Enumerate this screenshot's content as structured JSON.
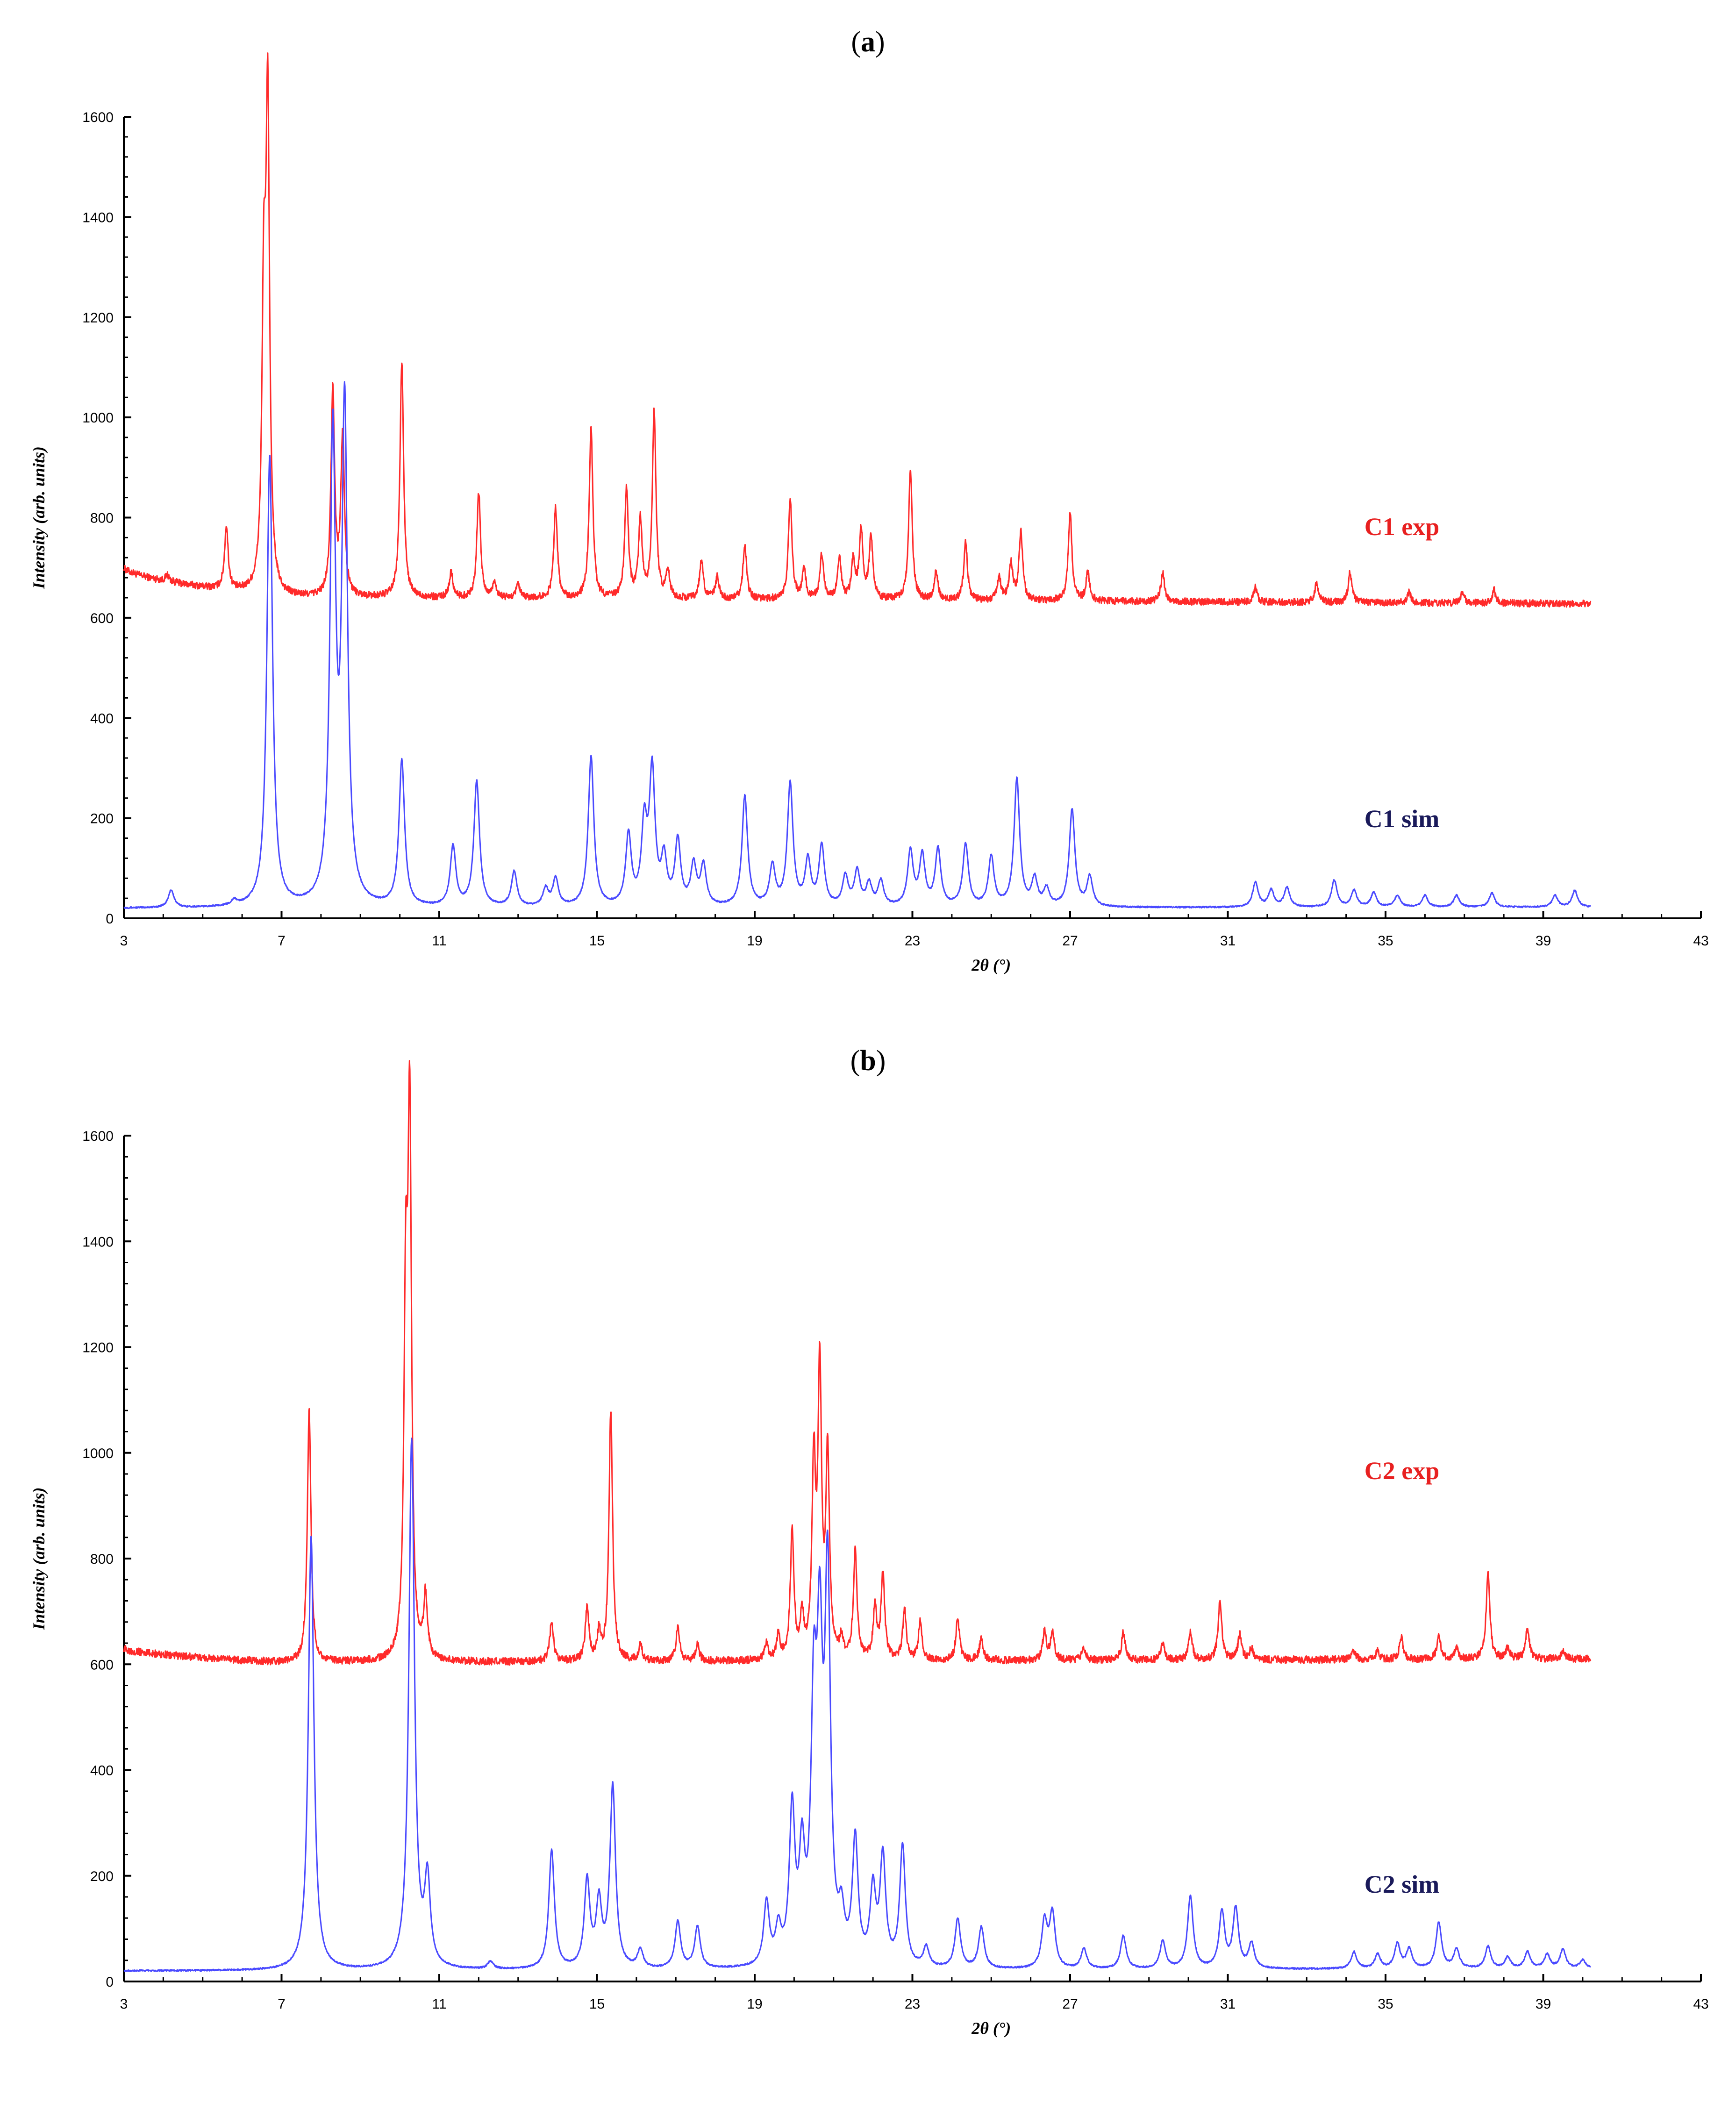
{
  "figure": {
    "panels": [
      {
        "prefix": "(",
        "letter": "a",
        "suffix": ")"
      },
      {
        "prefix": "(",
        "letter": "b",
        "suffix": ")"
      }
    ]
  },
  "chart_data": [
    {
      "type": "line",
      "panel": "a",
      "xlabel": "2θ (°)",
      "ylabel": "Intensity (arb. units)",
      "xlim": [
        3,
        43
      ],
      "ylim": [
        0,
        1600
      ],
      "xticks": [
        "3",
        "7",
        "11",
        "15",
        "19",
        "23",
        "27",
        "31",
        "35",
        "39",
        "43"
      ],
      "yticks": [
        "0",
        "200",
        "400",
        "600",
        "800",
        "1000",
        "1200",
        "1400",
        "1600"
      ],
      "colors": {
        "exp": "#ff2a2a",
        "sim": "#4a4aff"
      },
      "series": [
        {
          "name": "C1 exp",
          "baseline_start": 700,
          "baseline_mid": 640,
          "baseline_end": 628,
          "peaks": [
            [
              4.1,
              685
            ],
            [
              5.6,
              780
            ],
            [
              6.65,
              1590
            ],
            [
              6.55,
              1200
            ],
            [
              8.3,
              1050
            ],
            [
              8.55,
              960
            ],
            [
              10.05,
              1110
            ],
            [
              11.3,
              690
            ],
            [
              12.0,
              850
            ],
            [
              12.4,
              670
            ],
            [
              13.0,
              665
            ],
            [
              13.95,
              820
            ],
            [
              14.85,
              980
            ],
            [
              15.75,
              855
            ],
            [
              16.1,
              790
            ],
            [
              16.45,
              1010
            ],
            [
              16.8,
              690
            ],
            [
              17.65,
              715
            ],
            [
              18.05,
              680
            ],
            [
              18.75,
              745
            ],
            [
              19.9,
              835
            ],
            [
              20.25,
              695
            ],
            [
              20.7,
              725
            ],
            [
              21.15,
              715
            ],
            [
              21.5,
              710
            ],
            [
              21.7,
              775
            ],
            [
              21.95,
              760
            ],
            [
              22.95,
              895
            ],
            [
              23.6,
              690
            ],
            [
              24.35,
              750
            ],
            [
              25.2,
              680
            ],
            [
              25.5,
              705
            ],
            [
              25.75,
              770
            ],
            [
              27.0,
              810
            ],
            [
              27.45,
              690
            ],
            [
              29.35,
              690
            ],
            [
              31.7,
              660
            ],
            [
              33.25,
              670
            ],
            [
              34.1,
              690
            ],
            [
              35.6,
              650
            ],
            [
              36.95,
              650
            ],
            [
              37.75,
              655
            ]
          ]
        },
        {
          "name": "C1 sim",
          "baseline_start": 20,
          "baseline_mid": 20,
          "baseline_end": 22,
          "peaks": [
            [
              4.2,
              55
            ],
            [
              5.8,
              30
            ],
            [
              6.7,
              920
            ],
            [
              8.3,
              940
            ],
            [
              8.6,
              1000
            ],
            [
              10.05,
              310
            ],
            [
              11.35,
              140
            ],
            [
              11.95,
              270
            ],
            [
              12.9,
              90
            ],
            [
              13.7,
              55
            ],
            [
              13.95,
              75
            ],
            [
              14.85,
              320
            ],
            [
              15.8,
              160
            ],
            [
              16.2,
              175
            ],
            [
              16.4,
              285
            ],
            [
              16.7,
              110
            ],
            [
              17.05,
              150
            ],
            [
              17.45,
              100
            ],
            [
              17.7,
              100
            ],
            [
              18.75,
              240
            ],
            [
              19.45,
              100
            ],
            [
              19.9,
              265
            ],
            [
              20.35,
              110
            ],
            [
              20.7,
              140
            ],
            [
              21.3,
              80
            ],
            [
              21.6,
              90
            ],
            [
              21.9,
              65
            ],
            [
              22.2,
              70
            ],
            [
              22.95,
              130
            ],
            [
              23.25,
              120
            ],
            [
              23.65,
              135
            ],
            [
              24.35,
              145
            ],
            [
              25.0,
              120
            ],
            [
              25.65,
              275
            ],
            [
              26.1,
              75
            ],
            [
              26.4,
              55
            ],
            [
              27.05,
              215
            ],
            [
              27.5,
              80
            ],
            [
              31.7,
              70
            ],
            [
              32.1,
              55
            ],
            [
              32.5,
              60
            ],
            [
              33.7,
              75
            ],
            [
              34.2,
              55
            ],
            [
              34.7,
              50
            ],
            [
              35.3,
              45
            ],
            [
              36.0,
              45
            ],
            [
              36.8,
              45
            ],
            [
              37.7,
              50
            ],
            [
              39.3,
              45
            ],
            [
              39.8,
              55
            ]
          ]
        }
      ]
    },
    {
      "type": "line",
      "panel": "b",
      "xlabel": "2θ (°)",
      "ylabel": "Intensity (arb. units)",
      "xlim": [
        3,
        43
      ],
      "ylim": [
        0,
        1600
      ],
      "xticks": [
        "3",
        "7",
        "11",
        "15",
        "19",
        "23",
        "27",
        "31",
        "35",
        "39",
        "43"
      ],
      "yticks": [
        "0",
        "200",
        "400",
        "600",
        "800",
        "1000",
        "1200",
        "1400",
        "1600"
      ],
      "colors": {
        "exp": "#ff2a2a",
        "sim": "#4a4aff"
      },
      "series": [
        {
          "name": "C2 exp",
          "baseline_start": 630,
          "baseline_mid": 603,
          "baseline_end": 610,
          "peaks": [
            [
              7.7,
              1080
            ],
            [
              10.25,
              1595
            ],
            [
              10.15,
              1230
            ],
            [
              10.65,
              720
            ],
            [
              13.85,
              680
            ],
            [
              14.75,
              705
            ],
            [
              15.05,
              655
            ],
            [
              15.35,
              1080
            ],
            [
              16.1,
              635
            ],
            [
              17.05,
              670
            ],
            [
              17.55,
              635
            ],
            [
              19.3,
              635
            ],
            [
              19.6,
              650
            ],
            [
              19.95,
              845
            ],
            [
              20.2,
              680
            ],
            [
              20.5,
              960
            ],
            [
              20.65,
              1140
            ],
            [
              20.85,
              985
            ],
            [
              21.2,
              640
            ],
            [
              21.55,
              810
            ],
            [
              22.05,
              700
            ],
            [
              22.25,
              770
            ],
            [
              22.8,
              700
            ],
            [
              23.2,
              680
            ],
            [
              24.15,
              685
            ],
            [
              24.75,
              650
            ],
            [
              26.35,
              660
            ],
            [
              26.55,
              660
            ],
            [
              27.35,
              630
            ],
            [
              28.35,
              660
            ],
            [
              29.35,
              640
            ],
            [
              30.05,
              660
            ],
            [
              30.8,
              720
            ],
            [
              31.3,
              655
            ],
            [
              31.6,
              630
            ],
            [
              34.2,
              625
            ],
            [
              34.8,
              625
            ],
            [
              35.4,
              650
            ],
            [
              36.35,
              655
            ],
            [
              36.8,
              630
            ],
            [
              37.6,
              775
            ],
            [
              38.1,
              630
            ],
            [
              38.6,
              670
            ],
            [
              39.5,
              625
            ]
          ]
        },
        {
          "name": "C2 sim",
          "baseline_start": 20,
          "baseline_mid": 20,
          "baseline_end": 24,
          "peaks": [
            [
              7.75,
              840
            ],
            [
              10.3,
              1020
            ],
            [
              10.7,
              180
            ],
            [
              12.3,
              35
            ],
            [
              13.85,
              245
            ],
            [
              14.75,
              185
            ],
            [
              15.05,
              140
            ],
            [
              15.4,
              365
            ],
            [
              16.1,
              55
            ],
            [
              17.05,
              110
            ],
            [
              17.55,
              100
            ],
            [
              19.3,
              140
            ],
            [
              19.6,
              85
            ],
            [
              19.95,
              305
            ],
            [
              20.2,
              210
            ],
            [
              20.5,
              470
            ],
            [
              20.65,
              550
            ],
            [
              20.85,
              730
            ],
            [
              21.2,
              100
            ],
            [
              21.55,
              255
            ],
            [
              22.0,
              160
            ],
            [
              22.25,
              225
            ],
            [
              22.75,
              250
            ],
            [
              23.35,
              60
            ],
            [
              24.15,
              115
            ],
            [
              24.75,
              100
            ],
            [
              26.35,
              110
            ],
            [
              26.55,
              125
            ],
            [
              27.35,
              60
            ],
            [
              28.35,
              85
            ],
            [
              29.35,
              75
            ],
            [
              30.05,
              160
            ],
            [
              30.85,
              130
            ],
            [
              31.2,
              135
            ],
            [
              31.6,
              70
            ],
            [
              34.2,
              55
            ],
            [
              34.8,
              50
            ],
            [
              35.3,
              70
            ],
            [
              35.6,
              60
            ],
            [
              36.35,
              110
            ],
            [
              36.8,
              60
            ],
            [
              37.6,
              65
            ],
            [
              38.1,
              45
            ],
            [
              38.6,
              55
            ],
            [
              39.1,
              50
            ],
            [
              39.5,
              60
            ],
            [
              40.0,
              40
            ]
          ]
        }
      ]
    }
  ]
}
